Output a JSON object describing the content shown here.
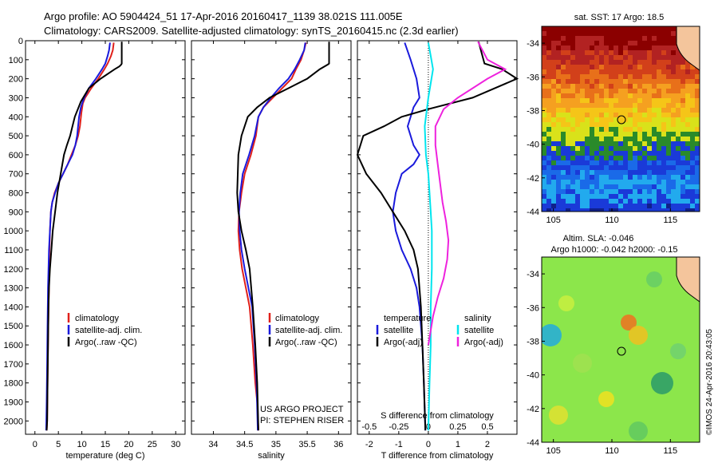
{
  "header": {
    "line1": "Argo profile: AO 5904424_51 17-Apr-2016 20160417_1139 38.021S 111.005E",
    "line2": "Climatology: CARS2009. Satellite-adjusted climatology: synTS_20160415.nc (2.3d earlier)"
  },
  "colors": {
    "climatology": "#e0201b",
    "satellite": "#1a1adc",
    "argo": "#000000",
    "sal_satellite": "#00e5ee",
    "sal_argo": "#ee22dd"
  },
  "depth_axis": {
    "ticks": [
      0,
      100,
      200,
      300,
      400,
      500,
      600,
      700,
      800,
      900,
      1000,
      1100,
      1200,
      1300,
      1400,
      1500,
      1600,
      1700,
      1800,
      1900,
      2000
    ],
    "range": [
      0,
      2070
    ]
  },
  "legend": {
    "climatology": "climatology",
    "satellite": "satellite-adj. clim.",
    "argo": "Argo(..raw -QC)"
  },
  "diff_legend": {
    "temperature_title": "temperature",
    "satellite": "satellite",
    "argo": "Argo(-adj)",
    "salinity_title": "salinity",
    "sal_satellite": "satellite",
    "sal_argo": "Argo(-adj)"
  },
  "project": {
    "line1": "US ARGO PROJECT",
    "line2": "PI: STEPHEN RISER"
  },
  "sst_map": {
    "title": "sat. SST: 17 Argo: 18.5",
    "xticks": [
      105,
      110,
      115
    ],
    "yticks": [
      -34,
      -36,
      -38,
      -40,
      -42,
      -44
    ]
  },
  "sla_map": {
    "title1": "Altim. SLA: -0.046",
    "title2": "Argo h1000: -0.042 h2000: -0.15",
    "xticks": [
      105,
      110,
      115
    ],
    "yticks": [
      -34,
      -36,
      -38,
      -40,
      -42,
      -44
    ]
  },
  "watermark": "©IMOS 24-Apr-2016 20:43:05",
  "chart_data": [
    {
      "type": "line",
      "xlabel": "temperature (deg C)",
      "ylabel": "",
      "xlim": [
        -2,
        32
      ],
      "ylim": [
        2070,
        0
      ],
      "xticks": [
        0,
        5,
        10,
        15,
        20,
        25,
        30
      ],
      "series": [
        {
          "name": "climatology",
          "x": [
            16.8,
            16.6,
            16.2,
            15.5,
            14.8,
            13.5,
            12.0,
            10.7,
            10.2,
            9.9,
            9.6,
            9.2,
            8.6,
            7.8,
            7.0,
            6.0,
            5.0,
            4.2,
            3.7,
            3.4,
            3.2,
            3.1,
            3.0,
            3.0,
            2.9,
            2.8,
            2.7,
            2.6,
            2.5
          ],
          "y": [
            10,
            50,
            80,
            120,
            150,
            200,
            250,
            300,
            330,
            380,
            450,
            500,
            550,
            600,
            650,
            700,
            750,
            800,
            850,
            900,
            1000,
            1100,
            1200,
            1300,
            1400,
            1600,
            1800,
            2000,
            2050
          ]
        },
        {
          "name": "satellite-adj. clim.",
          "x": [
            16.0,
            15.8,
            15.5,
            15.0,
            14.3,
            13.0,
            11.5,
            10.5,
            9.8,
            9.4,
            9.0,
            8.6,
            8.0,
            7.0,
            6.0,
            5.0,
            4.3,
            3.7,
            3.4,
            3.2,
            3.0,
            2.9,
            2.8,
            2.7,
            2.6,
            2.5,
            2.4
          ],
          "y": [
            10,
            50,
            80,
            120,
            150,
            200,
            250,
            300,
            350,
            400,
            500,
            550,
            600,
            650,
            700,
            750,
            800,
            850,
            900,
            1000,
            1100,
            1200,
            1300,
            1500,
            1700,
            1900,
            2050
          ]
        },
        {
          "name": "Argo(..raw -QC)",
          "x": [
            18.5,
            18.5,
            18.4,
            18.0,
            17.0,
            14.0,
            11.5,
            9.8,
            8.5,
            8.0,
            7.5,
            6.8,
            6.2,
            5.5,
            4.8,
            4.3,
            3.8,
            3.5,
            3.2,
            3.0,
            2.9,
            2.8,
            2.7,
            2.6,
            2.5
          ],
          "y": [
            5,
            120,
            125,
            135,
            150,
            200,
            250,
            320,
            400,
            450,
            500,
            550,
            600,
            700,
            800,
            900,
            1000,
            1100,
            1200,
            1300,
            1400,
            1600,
            1800,
            2000,
            2050
          ]
        }
      ]
    },
    {
      "type": "line",
      "xlabel": "salinity",
      "ylabel": "",
      "xlim": [
        33.65,
        36.2
      ],
      "ylim": [
        2070,
        0
      ],
      "xticks": [
        34,
        34.5,
        35,
        35.5,
        36
      ],
      "series": [
        {
          "name": "climatology",
          "x": [
            35.48,
            35.45,
            35.4,
            35.32,
            35.25,
            35.1,
            34.95,
            34.8,
            34.72,
            34.68,
            34.6,
            34.5,
            34.45,
            34.41,
            34.4,
            34.42,
            34.46,
            34.52,
            34.58,
            34.63,
            34.67,
            34.7,
            34.72
          ],
          "y": [
            10,
            50,
            100,
            150,
            200,
            250,
            300,
            350,
            400,
            500,
            600,
            700,
            800,
            900,
            1000,
            1100,
            1200,
            1300,
            1400,
            1600,
            1800,
            1900,
            2050
          ]
        },
        {
          "name": "satellite-adj. clim.",
          "x": [
            35.47,
            35.45,
            35.38,
            35.3,
            35.2,
            35.05,
            34.92,
            34.8,
            34.72,
            34.66,
            34.57,
            34.47,
            34.43,
            34.41,
            34.42,
            34.45,
            34.5,
            34.56,
            34.62,
            34.66,
            34.69,
            34.71
          ],
          "y": [
            10,
            50,
            100,
            150,
            200,
            250,
            300,
            350,
            400,
            500,
            600,
            700,
            800,
            900,
            1000,
            1100,
            1200,
            1300,
            1400,
            1600,
            1800,
            2050
          ]
        },
        {
          "name": "Argo(..raw -QC)",
          "x": [
            35.85,
            35.85,
            35.83,
            35.7,
            35.5,
            35.2,
            34.9,
            34.7,
            34.55,
            34.45,
            34.4,
            34.38,
            34.4,
            34.45,
            34.52,
            34.58,
            34.63,
            34.67,
            34.7,
            34.72
          ],
          "y": [
            5,
            120,
            125,
            150,
            200,
            250,
            300,
            350,
            400,
            500,
            600,
            800,
            900,
            1000,
            1100,
            1200,
            1400,
            1600,
            1800,
            2050
          ]
        }
      ]
    },
    {
      "type": "line",
      "xlabel": "T difference from climatology",
      "ylabel": "",
      "xlim": [
        -2.4,
        3.0
      ],
      "ylim": [
        2070,
        0
      ],
      "xticks": [
        -2,
        -1,
        0,
        1,
        2
      ],
      "top_xlabel": "S difference from climatology",
      "top_xticks": [
        -0.5,
        -0.25,
        0,
        0.25,
        0.5
      ],
      "top_xlim": [
        -0.6,
        0.75
      ],
      "series": [
        {
          "name": "temperature satellite",
          "x": [
            -0.8,
            -0.6,
            -0.4,
            -0.3,
            -0.5,
            -0.7,
            -0.5,
            -0.3,
            -0.5,
            -0.9,
            -1.1,
            -1.2,
            -1.1,
            -0.9,
            -0.6,
            -0.4,
            -0.3,
            -0.2,
            -0.15,
            -0.1
          ],
          "y": [
            10,
            100,
            200,
            300,
            350,
            450,
            550,
            600,
            650,
            700,
            800,
            900,
            1000,
            1100,
            1200,
            1300,
            1400,
            1600,
            1800,
            2050
          ]
        },
        {
          "name": "temperature Argo(-adj)",
          "x": [
            1.7,
            1.9,
            2.5,
            3.0,
            1.5,
            0.0,
            -0.9,
            -1.5,
            -2.2,
            -2.4,
            -2.1,
            -1.6,
            -1.2,
            -0.8,
            -0.5,
            -0.35,
            -0.25,
            -0.2,
            -0.15,
            -0.1
          ],
          "y": [
            5,
            120,
            150,
            200,
            300,
            360,
            400,
            450,
            500,
            600,
            700,
            800,
            900,
            1000,
            1100,
            1200,
            1400,
            1600,
            1800,
            2050
          ]
        },
        {
          "name": "salinity satellite",
          "x": [
            0.0,
            0.02,
            0.04,
            0.0,
            -0.03,
            -0.02,
            0.0,
            0.01,
            0.02,
            0.03,
            0.03,
            0.03,
            0.02,
            0.02,
            0.01,
            0.0
          ],
          "y": [
            10,
            80,
            150,
            300,
            450,
            600,
            700,
            800,
            900,
            1000,
            1100,
            1200,
            1400,
            1600,
            1800,
            2050
          ]
        },
        {
          "name": "salinity Argo(-adj)",
          "x": [
            0.42,
            0.5,
            0.65,
            0.5,
            0.25,
            0.13,
            0.06,
            0.06,
            0.08,
            0.1,
            0.12,
            0.15,
            0.17,
            0.16,
            0.13,
            0.08,
            0.04,
            0.0
          ],
          "y": [
            5,
            100,
            150,
            200,
            300,
            360,
            450,
            550,
            650,
            750,
            850,
            950,
            1050,
            1150,
            1250,
            1350,
            1450,
            1600
          ]
        }
      ]
    }
  ]
}
